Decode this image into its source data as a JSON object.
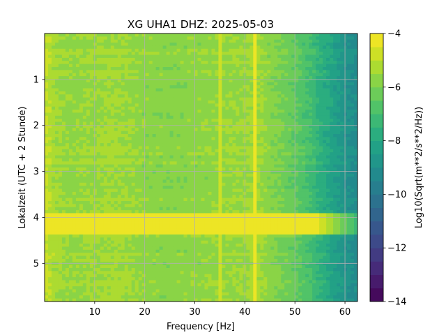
{
  "chart_data": {
    "type": "heatmap",
    "title": "XG UHA1  DHZ: 2025-05-03",
    "xlabel": "Frequency [Hz]",
    "ylabel": "Lokalzeit (UTC + 2 Stunde)",
    "colorbar_label": "Log10(Sqrt(m**2/s**2/Hz))",
    "xlim": [
      0.0,
      62.5
    ],
    "ylim": [
      0.0,
      5.83
    ],
    "y_inverted": true,
    "xticks": [
      10,
      20,
      30,
      40,
      50,
      60
    ],
    "yticks": [
      1,
      2,
      3,
      4,
      5
    ],
    "colorbar_range": [
      -14,
      -4
    ],
    "colorbar_ticks": [
      -4,
      -6,
      -8,
      -10,
      -12,
      -14
    ],
    "colormap": "viridis",
    "grid": true,
    "base_level_by_frequency": {
      "x": [
        0,
        2,
        5,
        10,
        15,
        20,
        25,
        30,
        35,
        40,
        42,
        45,
        50,
        53,
        55,
        58,
        60,
        62.5
      ],
      "z": [
        -4.8,
        -5.4,
        -5.6,
        -5.5,
        -5.4,
        -5.7,
        -5.8,
        -5.7,
        -5.6,
        -5.5,
        -5.3,
        -5.8,
        -6.4,
        -7.0,
        -7.6,
        -8.3,
        -8.8,
        -9.2
      ]
    },
    "notable_features": [
      {
        "label": "broadband band",
        "time_from": 3.9,
        "time_to": 4.35,
        "level": -4.5
      },
      {
        "label": "narrow line",
        "frequency": 42.0,
        "level": -4.4
      },
      {
        "label": "narrow line",
        "frequency": 35.0,
        "level": -5.0
      }
    ]
  }
}
